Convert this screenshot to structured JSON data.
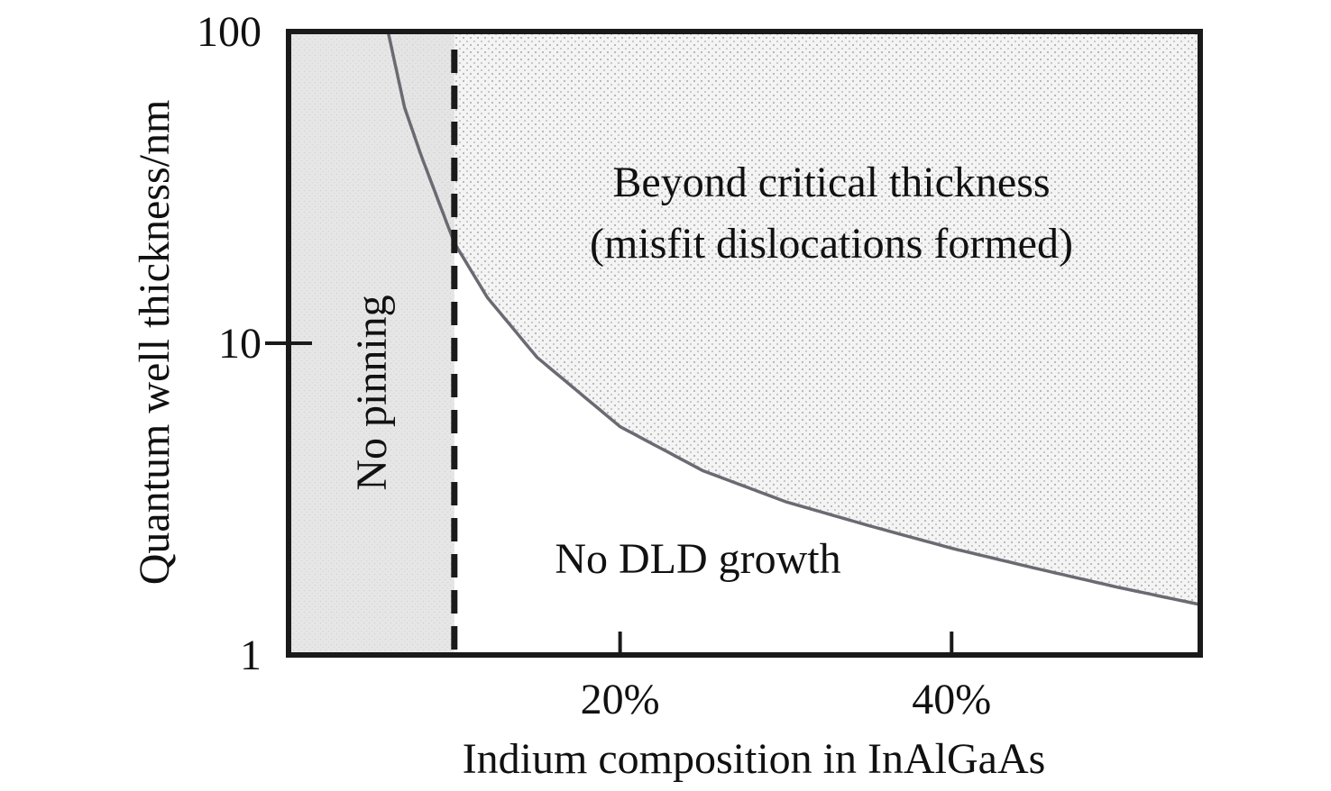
{
  "chart_data": {
    "type": "area",
    "xlabel": "Indium composition in InAlGaAs",
    "ylabel": "Quantum well thickness/nm",
    "y_scale": "log",
    "x_unit": "%",
    "xlim": [
      0,
      55
    ],
    "ylim": [
      1,
      100
    ],
    "x_ticks": [
      {
        "value": 20,
        "label": "20%"
      },
      {
        "value": 40,
        "label": "40%"
      }
    ],
    "y_ticks": [
      {
        "value": 1,
        "label": "1"
      },
      {
        "value": 10,
        "label": "10"
      },
      {
        "value": 100,
        "label": "100"
      }
    ],
    "critical_thickness_curve": {
      "x": [
        6.0,
        7.0,
        8.0,
        10.0,
        12.0,
        15.0,
        20.0,
        25.0,
        30.0,
        35.0,
        40.0,
        45.0,
        50.0,
        55.0
      ],
      "y": [
        100,
        57,
        40,
        21,
        14,
        9.0,
        5.4,
        3.9,
        3.1,
        2.6,
        2.2,
        1.9,
        1.65,
        1.45
      ]
    },
    "pinning_threshold": {
      "x": 10,
      "style": "dashed"
    },
    "regions": [
      {
        "label": "No pinning",
        "fill": "#e6e6e6",
        "pattern": "light-gray"
      },
      {
        "label_lines": [
          "Beyond critical thickness",
          "(misfit dislocations formed)"
        ],
        "fill": "#f1f1f1",
        "pattern": "dotted"
      },
      {
        "label": "No DLD growth",
        "fill": "#ffffff"
      }
    ],
    "colors": {
      "frame": "#1a1a1a",
      "curve": "#6a6a72",
      "dashed": "#1a1a1a"
    },
    "grid": false,
    "legend": "none"
  }
}
